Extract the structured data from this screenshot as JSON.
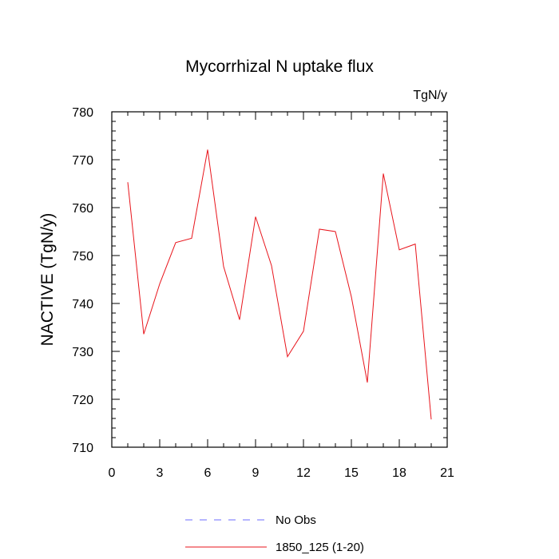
{
  "chart_data": {
    "type": "line",
    "title": "Mycorrhizal N uptake flux",
    "units": "TgN/y",
    "ylabel": "NACTIVE  (TgN/y)",
    "xlabel": "",
    "xlim": [
      0,
      21
    ],
    "ylim": [
      710,
      780
    ],
    "xticks": [
      0,
      3,
      6,
      9,
      12,
      15,
      18,
      21
    ],
    "yticks": [
      710,
      720,
      730,
      740,
      750,
      760,
      770,
      780
    ],
    "x": [
      1,
      2,
      3,
      4,
      5,
      6,
      7,
      8,
      9,
      10,
      11,
      12,
      13,
      14,
      15,
      16,
      17,
      18,
      19,
      20
    ],
    "series": [
      {
        "name": "1850_125 (1-20)",
        "color": "#e8141b",
        "style": "solid",
        "values": [
          765.3,
          733.6,
          744.1,
          752.7,
          753.6,
          772.1,
          747.7,
          736.6,
          758.1,
          747.9,
          728.9,
          734.2,
          755.5,
          755.0,
          741.4,
          723.5,
          767.1,
          751.2,
          752.4,
          715.8
        ]
      }
    ],
    "legend": {
      "placement": "bottom-center",
      "entries": [
        {
          "label": "No Obs",
          "color": "#6c6cff",
          "style": "dashed"
        },
        {
          "label": "1850_125 (1-20)",
          "color": "#e8141b",
          "style": "solid"
        }
      ]
    },
    "grid": false
  }
}
